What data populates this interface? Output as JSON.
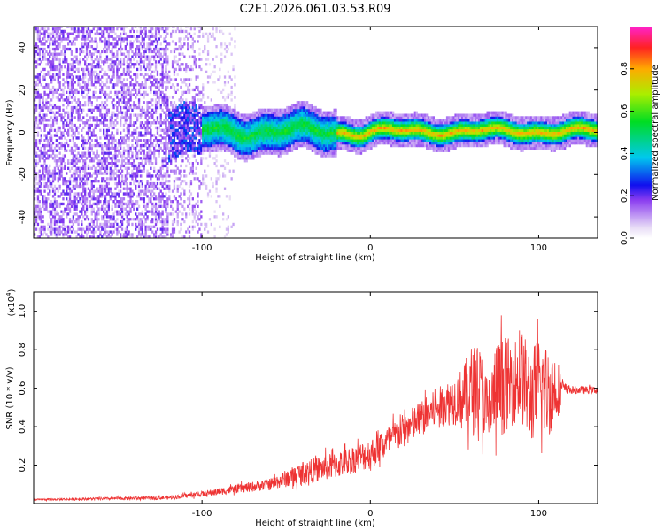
{
  "title": "C2E1.2026.061.03.53.R09",
  "colors": {
    "snr_line": "#ee3333",
    "noise_purple": "#8a3cf0",
    "band_ridge": "#ff2a2a"
  },
  "chart_data": [
    {
      "type": "heatmap",
      "name": "spectrogram",
      "xlabel": "Height of straight line (km)",
      "ylabel": "Frequency (Hz)",
      "xlim": [
        -200,
        135
      ],
      "ylim": [
        -50,
        50
      ],
      "x_ticks": [
        -100,
        0,
        100
      ],
      "x_tick_labels": [
        "-100",
        "0",
        "100"
      ],
      "y_ticks": [
        -40,
        -20,
        0,
        20,
        40
      ],
      "y_tick_labels": [
        "-40",
        "-20",
        "0",
        "20",
        "40"
      ],
      "colorbar": {
        "label": "Normalized spectral amplitude",
        "range": [
          0,
          1
        ],
        "ticks": [
          0,
          0.2,
          0.4,
          0.6,
          0.8
        ],
        "tick_labels": [
          "0.0",
          "0.2",
          "0.4",
          "0.6",
          "0.8"
        ]
      },
      "features": {
        "noise_region_x": [
          -200,
          -100
        ],
        "signal_band_center_hz": 0,
        "signal_band_halfwidth_hz": [
          5,
          8
        ]
      }
    },
    {
      "type": "line",
      "name": "snr",
      "xlabel": "Height of straight line (km)",
      "ylabel": "SNR (10 * v/v)",
      "y_multiplier": "(x10",
      "y_multiplier_exp": "4",
      "xlim": [
        -200,
        135
      ],
      "ylim": [
        0,
        1.1
      ],
      "x_ticks": [
        -100,
        0,
        100
      ],
      "x_tick_labels": [
        "-100",
        "0",
        "100"
      ],
      "y_ticks": [
        0.2,
        0.4,
        0.6,
        0.8,
        1.0
      ],
      "y_tick_labels": [
        "0.2",
        "0.4",
        "0.6",
        "0.8",
        "1.0"
      ],
      "envelope": {
        "x": [
          -200,
          -120,
          -100,
          -60,
          -40,
          -20,
          0,
          20,
          40,
          55,
          60,
          65,
          70,
          75,
          80,
          85,
          90,
          95,
          100,
          105,
          110,
          115,
          120,
          135
        ],
        "mean": [
          0.02,
          0.03,
          0.05,
          0.1,
          0.16,
          0.2,
          0.26,
          0.38,
          0.5,
          0.56,
          0.58,
          0.62,
          0.45,
          0.6,
          0.62,
          0.63,
          0.66,
          0.55,
          0.62,
          0.58,
          0.6,
          0.6,
          0.59,
          0.59
        ],
        "spread": [
          0.004,
          0.01,
          0.015,
          0.03,
          0.06,
          0.07,
          0.08,
          0.09,
          0.1,
          0.15,
          0.25,
          0.2,
          0.2,
          0.25,
          0.25,
          0.22,
          0.25,
          0.25,
          0.25,
          0.25,
          0.2,
          0.03,
          0.02,
          0.02
        ]
      }
    }
  ]
}
